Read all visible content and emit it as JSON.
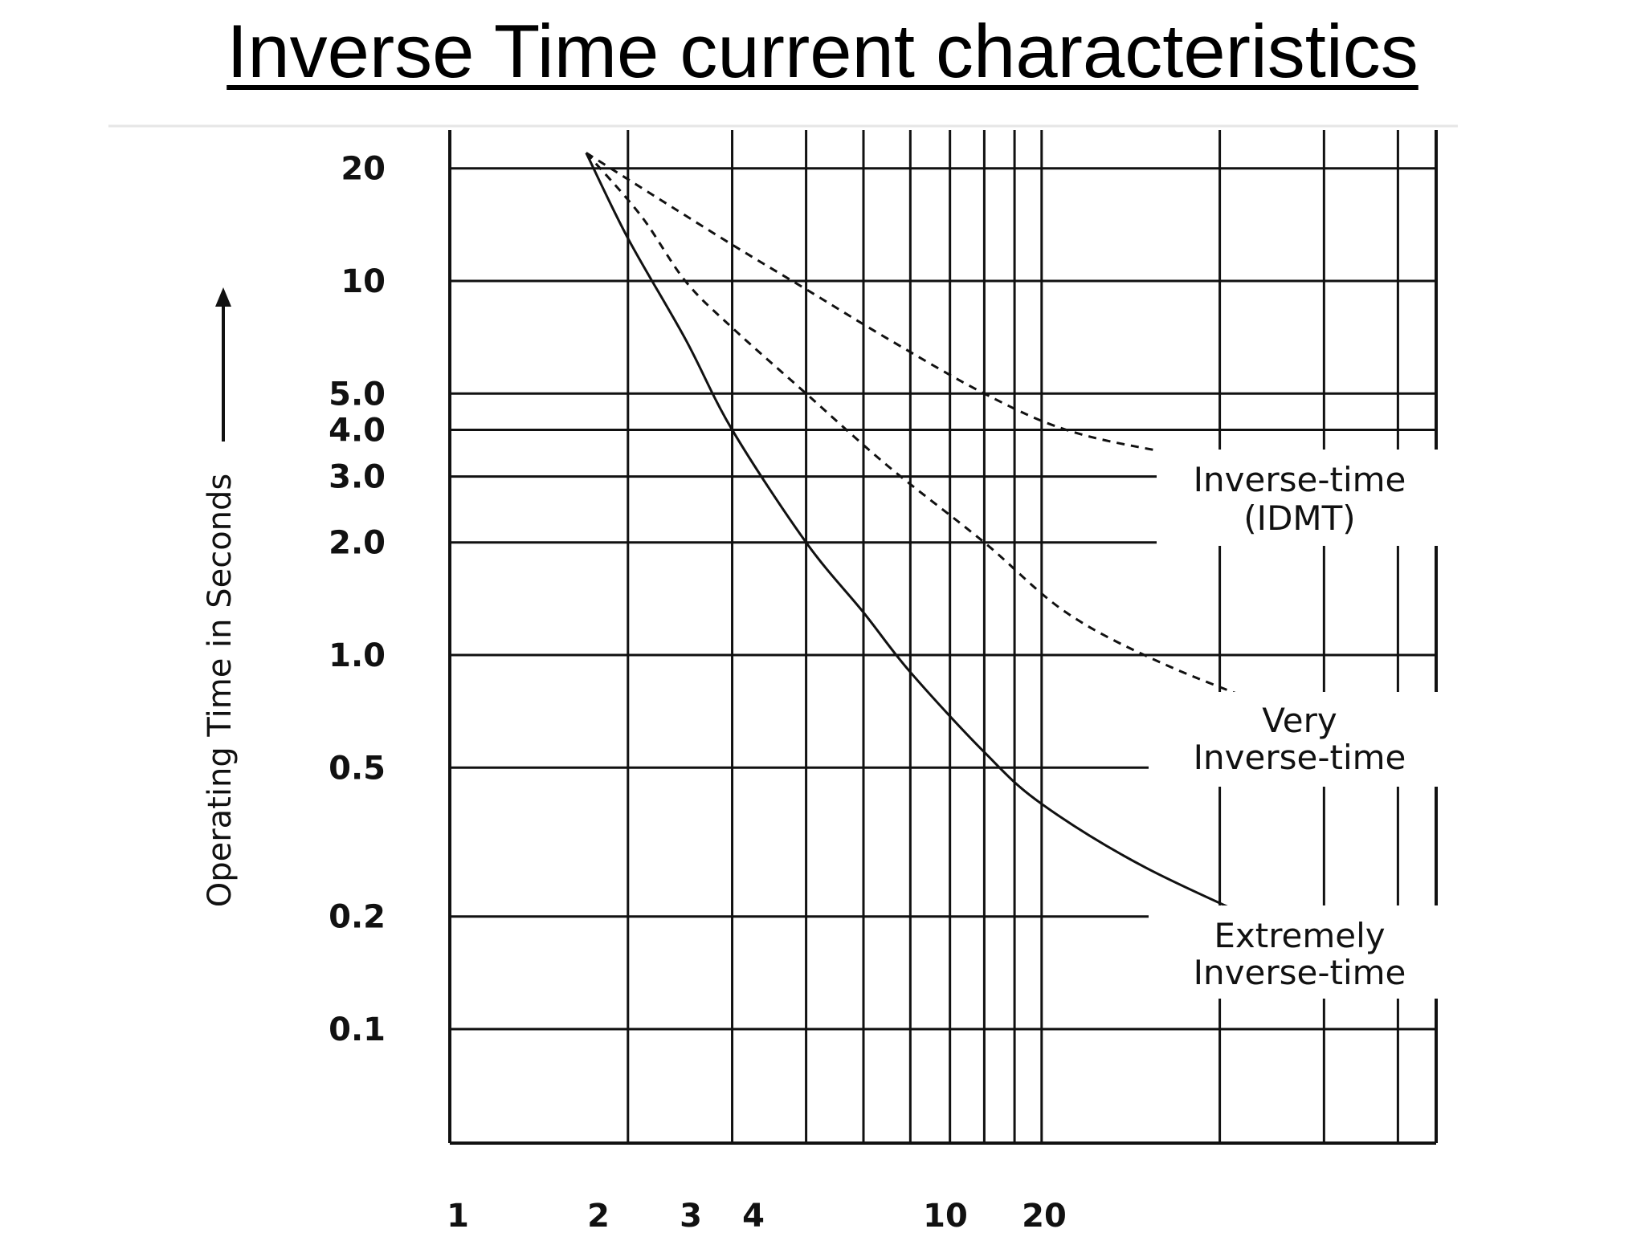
{
  "title": "Inverse Time current characteristics",
  "chart_data": {
    "type": "line",
    "title": "Inverse Time current characteristics",
    "ylabel": "Operating Time in Seconds",
    "xlabel": "",
    "y_scale": "log",
    "ylim": [
      0.05,
      25
    ],
    "y_ticks": [
      {
        "value": 20,
        "label": "20"
      },
      {
        "value": 10,
        "label": "10"
      },
      {
        "value": 5,
        "label": "5.0"
      },
      {
        "value": 4,
        "label": "4.0"
      },
      {
        "value": 3,
        "label": "3.0"
      },
      {
        "value": 2,
        "label": "2.0"
      },
      {
        "value": 1,
        "label": "1.0"
      },
      {
        "value": 0.5,
        "label": "0.5"
      },
      {
        "value": 0.2,
        "label": "0.2"
      },
      {
        "value": 0.1,
        "label": "0.1"
      }
    ],
    "x_tick_labels": [
      "1",
      "2",
      "3",
      "4",
      "10",
      "20"
    ],
    "series": [
      {
        "name": "Inverse-time (IDMT)",
        "style": "dashed",
        "points": [
          [
            1.7,
            22
          ],
          [
            2.2,
            17
          ],
          [
            3,
            12.5
          ],
          [
            4,
            9.5
          ],
          [
            5.5,
            7
          ],
          [
            8,
            5
          ],
          [
            11,
            4
          ],
          [
            16,
            3.5
          ],
          [
            26,
            3.1
          ]
        ]
      },
      {
        "name": "Very Inverse-time",
        "style": "dashed",
        "points": [
          [
            1.7,
            22
          ],
          [
            2.1,
            15
          ],
          [
            2.5,
            10
          ],
          [
            3,
            7.5
          ],
          [
            4,
            5
          ],
          [
            5.5,
            3.2
          ],
          [
            8,
            2
          ],
          [
            11,
            1.3
          ],
          [
            16,
            0.95
          ],
          [
            26,
            0.7
          ]
        ]
      },
      {
        "name": "Extremely Inverse-time",
        "style": "solid",
        "points": [
          [
            1.7,
            22
          ],
          [
            2,
            13
          ],
          [
            2.5,
            7
          ],
          [
            3,
            4
          ],
          [
            4,
            2
          ],
          [
            5,
            1.3
          ],
          [
            6,
            0.9
          ],
          [
            8,
            0.55
          ],
          [
            10,
            0.4
          ],
          [
            15,
            0.27
          ],
          [
            26,
            0.18
          ]
        ]
      }
    ]
  }
}
